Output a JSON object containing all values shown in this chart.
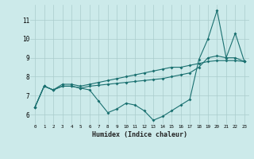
{
  "xlabel": "Humidex (Indice chaleur)",
  "xlim": [
    -0.5,
    23.5
  ],
  "ylim": [
    5.5,
    11.8
  ],
  "yticks": [
    6,
    7,
    8,
    9,
    10,
    11
  ],
  "xticks": [
    0,
    1,
    2,
    3,
    4,
    5,
    6,
    7,
    8,
    9,
    10,
    11,
    12,
    13,
    14,
    15,
    16,
    17,
    18,
    19,
    20,
    21,
    22,
    23
  ],
  "bg_color": "#cceaea",
  "grid_color": "#aacccc",
  "line_color": "#1a7070",
  "line1": [
    6.4,
    7.5,
    7.3,
    7.5,
    7.5,
    7.4,
    7.3,
    6.7,
    6.1,
    6.3,
    6.6,
    6.5,
    6.2,
    5.7,
    5.9,
    6.2,
    6.5,
    6.8,
    8.9,
    10.0,
    11.5,
    9.0,
    10.3,
    8.8
  ],
  "line2": [
    6.4,
    7.5,
    7.3,
    7.6,
    7.6,
    7.5,
    7.6,
    7.7,
    7.8,
    7.9,
    8.0,
    8.1,
    8.2,
    8.3,
    8.4,
    8.5,
    8.5,
    8.6,
    8.7,
    8.8,
    8.85,
    8.85,
    8.85,
    8.8
  ],
  "line3": [
    6.4,
    7.5,
    7.3,
    7.5,
    7.5,
    7.4,
    7.5,
    7.55,
    7.6,
    7.65,
    7.7,
    7.75,
    7.8,
    7.85,
    7.9,
    8.0,
    8.1,
    8.2,
    8.5,
    9.0,
    9.1,
    9.0,
    9.0,
    8.8
  ]
}
